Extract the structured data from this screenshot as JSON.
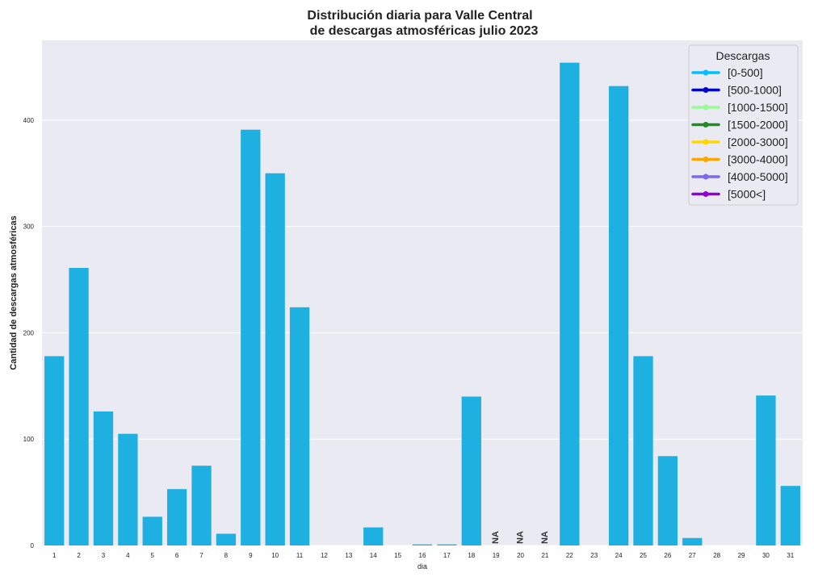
{
  "chart_data": {
    "type": "bar",
    "title_line1": "Distribución diaria para Valle Central",
    "title_line2": "de descargas atmosféricas julio 2023",
    "xlabel": "dia",
    "ylabel": "Cantidad de descargas atmosféricas",
    "ylim": [
      0,
      475
    ],
    "yticks": [
      0,
      100,
      200,
      300,
      400
    ],
    "grid": true,
    "bar_color": "#1fb0e2",
    "background_color": "#eaeaf2",
    "categories": [
      "1",
      "2",
      "3",
      "4",
      "5",
      "6",
      "7",
      "8",
      "9",
      "10",
      "11",
      "12",
      "13",
      "14",
      "15",
      "16",
      "17",
      "18",
      "19",
      "20",
      "21",
      "22",
      "23",
      "24",
      "25",
      "26",
      "27",
      "28",
      "29",
      "30",
      "31"
    ],
    "values": [
      178,
      261,
      126,
      105,
      27,
      53,
      75,
      11,
      391,
      350,
      224,
      0,
      0,
      17,
      0,
      1,
      1,
      140,
      null,
      null,
      null,
      454,
      0,
      432,
      178,
      84,
      7,
      0,
      0,
      141,
      56
    ],
    "na_label": "NA",
    "legend": {
      "title": "Descargas",
      "placement": "top-right",
      "entries": [
        {
          "label": "[0-500]",
          "color": "#00bfff"
        },
        {
          "label": "[500-1000]",
          "color": "#0000cd"
        },
        {
          "label": "[1000-1500]",
          "color": "#98fb98"
        },
        {
          "label": "[1500-2000]",
          "color": "#228b22"
        },
        {
          "label": "[2000-3000]",
          "color": "#ffd700"
        },
        {
          "label": "[3000-4000]",
          "color": "#ffa500"
        },
        {
          "label": "[4000-5000]",
          "color": "#7b68ee"
        },
        {
          "label": "[5000<]",
          "color": "#9400d3"
        }
      ]
    }
  }
}
